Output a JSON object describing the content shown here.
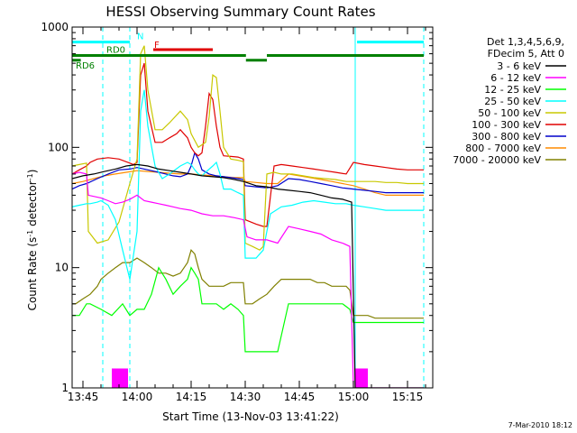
{
  "chart_data": {
    "type": "line",
    "title": "HESSI Observing Summary Count Rates",
    "xlabel": "Start Time (13-Nov-03 13:41:22)",
    "ylabel_pre": "Count Rate (s",
    "ylabel_sup1": "-1",
    "ylabel_mid": " detector",
    "ylabel_sup2": "-1",
    "ylabel_post": ")",
    "yscale": "log",
    "ylim": [
      1,
      1000
    ],
    "xlim_min": [
      822,
      922
    ],
    "xticks": [
      {
        "v": 825,
        "label": "13:45"
      },
      {
        "v": 840,
        "label": "14:00"
      },
      {
        "v": 855,
        "label": "14:15"
      },
      {
        "v": 870,
        "label": "14:30"
      },
      {
        "v": 885,
        "label": "14:45"
      },
      {
        "v": 900,
        "label": "15:00"
      },
      {
        "v": 915,
        "label": "15:15"
      }
    ],
    "yticks": [
      {
        "v": 1,
        "label": "1"
      },
      {
        "v": 10,
        "label": "10"
      },
      {
        "v": 100,
        "label": "100"
      },
      {
        "v": 1000,
        "label": "1000"
      }
    ],
    "legend_position": "right",
    "legend_header": [
      "Det 1,3,4,5,6,9,",
      "FDecim 5, Att 0"
    ],
    "series": [
      {
        "name": "3 - 6 keV",
        "color": "#000000",
        "x": [
          822,
          825,
          828,
          831,
          834,
          837,
          840,
          843,
          846,
          849,
          852,
          855,
          858,
          861,
          864,
          867,
          869.5,
          873,
          876,
          879,
          882,
          885,
          888,
          891,
          894,
          897,
          899.5,
          900.5,
          903,
          906,
          909,
          912,
          915,
          918,
          919.5
        ],
        "y": [
          55,
          58,
          60,
          63,
          66,
          70,
          72,
          70,
          66,
          64,
          62,
          60,
          58,
          57,
          56,
          54,
          52,
          48,
          47,
          45,
          44,
          43,
          42,
          40,
          38,
          37,
          35,
          1,
          1,
          1,
          1,
          1,
          1,
          1,
          1
        ]
      },
      {
        "name": "6 - 12 keV",
        "color": "#ff00ff",
        "x": [
          822,
          824,
          826,
          826.5,
          830,
          832,
          834,
          836,
          838,
          840,
          842,
          844,
          846,
          848,
          850,
          852,
          855,
          858,
          861,
          864,
          867,
          869.5,
          870.5,
          873,
          876,
          879,
          882,
          885,
          888,
          891,
          894,
          897,
          899,
          900,
          903,
          906,
          909,
          912,
          915,
          918,
          919.5
        ],
        "y": [
          60,
          62,
          60,
          40,
          38,
          36,
          34,
          35,
          37,
          40,
          36,
          35,
          34,
          33,
          32,
          31,
          30,
          28,
          27,
          27,
          26,
          25,
          18,
          17,
          17,
          16,
          22,
          21,
          20,
          19,
          17,
          16,
          15,
          1,
          1,
          1,
          1,
          1,
          1,
          1,
          1
        ]
      },
      {
        "name": "12 - 25 keV",
        "color": "#00ff00",
        "x": [
          822,
          824,
          826,
          827,
          830,
          833,
          836,
          838,
          840,
          842,
          844,
          846,
          848,
          850,
          852,
          854,
          855,
          856,
          857,
          858,
          860,
          862,
          864,
          866,
          868,
          869.5,
          870,
          873,
          876,
          879,
          882,
          885,
          888,
          891,
          894,
          897,
          899,
          900,
          903,
          906,
          909,
          912,
          915,
          918,
          919.5
        ],
        "y": [
          4,
          4,
          5,
          5,
          4.5,
          4,
          5,
          4,
          4.5,
          4.5,
          6,
          10,
          8,
          6,
          7,
          8,
          10,
          9,
          8,
          5,
          5,
          5,
          4.5,
          5,
          4.5,
          4,
          2,
          2,
          2,
          2,
          5,
          5,
          5,
          5,
          5,
          5,
          4.5,
          3.5,
          3.5,
          3.5,
          3.5,
          3.5,
          3.5,
          3.5,
          3.5
        ]
      },
      {
        "name": "25 - 50 keV",
        "color": "#00ffff",
        "x": [
          822,
          824,
          826,
          827,
          829,
          830,
          832,
          834,
          836,
          838,
          840,
          841,
          842,
          843,
          845,
          847,
          849,
          852,
          854,
          855,
          856,
          857,
          858,
          859,
          861,
          862,
          863,
          864,
          866,
          868,
          869.5,
          870,
          873,
          875,
          876,
          877,
          880,
          883,
          886,
          889,
          892,
          895,
          898,
          900,
          903,
          906,
          909,
          912,
          915,
          918,
          919.5
        ],
        "y": [
          32,
          33,
          34,
          34,
          35,
          36,
          33,
          25,
          14,
          8,
          20,
          200,
          300,
          150,
          70,
          55,
          60,
          70,
          75,
          72,
          65,
          60,
          58,
          62,
          70,
          75,
          60,
          45,
          45,
          42,
          40,
          12,
          12,
          14,
          20,
          28,
          32,
          33,
          35,
          36,
          35,
          34,
          34,
          33,
          32,
          31,
          30,
          30,
          30,
          30,
          30
        ]
      },
      {
        "name": "50 - 100 keV",
        "color": "#c8c800",
        "x": [
          822,
          824,
          826,
          826.5,
          829,
          832,
          835,
          838,
          840,
          841,
          842,
          843,
          845,
          847,
          849,
          852,
          854,
          855,
          857,
          859,
          860,
          861,
          862,
          863,
          864,
          866,
          868,
          869.5,
          870,
          872,
          874,
          875,
          876,
          878,
          880,
          883,
          886,
          889,
          892,
          895,
          898,
          900,
          903,
          906,
          909,
          912,
          915,
          918,
          919.5
        ],
        "y": [
          70,
          72,
          74,
          20,
          16,
          17,
          24,
          50,
          80,
          600,
          700,
          300,
          140,
          140,
          160,
          200,
          170,
          130,
          100,
          110,
          180,
          400,
          380,
          200,
          100,
          80,
          78,
          76,
          16,
          15,
          14,
          15,
          60,
          62,
          60,
          60,
          58,
          56,
          55,
          54,
          52,
          52,
          52,
          52,
          51,
          51,
          50,
          50,
          50
        ]
      },
      {
        "name": "100 - 300 keV",
        "color": "#e00000",
        "x": [
          822,
          824,
          826,
          827,
          829,
          832,
          835,
          838,
          839,
          840,
          841,
          842,
          843,
          845,
          847,
          849,
          851,
          852,
          854,
          855,
          856,
          857,
          858,
          859,
          860,
          861,
          862,
          863,
          864,
          866,
          868,
          869.5,
          870,
          873,
          875,
          876,
          878,
          880,
          883,
          886,
          889,
          892,
          895,
          898,
          900,
          903,
          906,
          909,
          912,
          915,
          918,
          919.5
        ],
        "y": [
          60,
          65,
          70,
          75,
          80,
          82,
          80,
          74,
          72,
          75,
          400,
          500,
          200,
          110,
          110,
          120,
          130,
          140,
          120,
          100,
          90,
          85,
          90,
          150,
          280,
          250,
          150,
          100,
          85,
          84,
          83,
          80,
          25,
          23,
          22,
          22,
          70,
          72,
          70,
          68,
          66,
          64,
          62,
          60,
          75,
          72,
          70,
          68,
          66,
          65,
          65,
          65
        ]
      },
      {
        "name": "300 - 800 keV",
        "color": "#0000cc",
        "x": [
          822,
          824,
          826,
          829,
          832,
          835,
          838,
          840,
          842,
          844,
          846,
          848,
          850,
          852,
          854,
          855,
          856,
          857,
          858,
          860,
          862,
          864,
          866,
          868,
          869.5,
          870,
          873,
          876,
          879,
          882,
          885,
          888,
          891,
          894,
          897,
          900,
          903,
          906,
          909,
          912,
          915,
          918,
          919.5
        ],
        "y": [
          45,
          48,
          50,
          55,
          60,
          65,
          66,
          68,
          66,
          64,
          62,
          60,
          58,
          57,
          60,
          70,
          90,
          80,
          65,
          60,
          58,
          57,
          56,
          55,
          54,
          48,
          47,
          46,
          48,
          55,
          54,
          52,
          50,
          48,
          46,
          45,
          44,
          43,
          42,
          42,
          42,
          42,
          42
        ]
      },
      {
        "name": "800 - 7000 keV",
        "color": "#ff8c00",
        "x": [
          822,
          825,
          828,
          831,
          834,
          837,
          840,
          843,
          846,
          849,
          852,
          855,
          858,
          861,
          864,
          867,
          869.5,
          870,
          873,
          876,
          879,
          882,
          885,
          888,
          891,
          894,
          897,
          900,
          903,
          906,
          909,
          912,
          915,
          918,
          919.5
        ],
        "y": [
          50,
          52,
          55,
          58,
          60,
          62,
          64,
          63,
          62,
          61,
          60,
          60,
          59,
          58,
          57,
          56,
          56,
          52,
          51,
          50,
          50,
          60,
          58,
          56,
          54,
          52,
          50,
          48,
          45,
          42,
          40,
          40,
          40,
          40,
          40
        ]
      },
      {
        "name": "7000 - 20000 keV",
        "color": "#808000",
        "x": [
          822,
          823,
          825,
          827,
          829,
          830,
          832,
          834,
          836,
          838,
          840,
          842,
          844,
          846,
          848,
          850,
          852,
          854,
          855,
          856,
          857,
          858,
          860,
          862,
          864,
          866,
          868,
          869.5,
          870,
          872,
          874,
          876,
          878,
          880,
          882,
          884,
          886,
          888,
          890,
          892,
          894,
          896,
          898,
          899,
          900,
          902,
          904,
          906,
          908,
          910,
          912,
          914,
          916,
          918,
          919.5
        ],
        "y": [
          5,
          5,
          5.5,
          6,
          7,
          8,
          9,
          10,
          11,
          11,
          12,
          11,
          10,
          9,
          9,
          8.5,
          9,
          11,
          14,
          13,
          10,
          8,
          7,
          7,
          7,
          7.5,
          7.5,
          7.5,
          5,
          5,
          5.5,
          6,
          7,
          8,
          8,
          8,
          8,
          8,
          7.5,
          7.5,
          7,
          7,
          7,
          6.5,
          4,
          4,
          4,
          3.8,
          3.8,
          3.8,
          3.8,
          3.8,
          3.8,
          3.8,
          3.8
        ]
      }
    ],
    "vlines": [
      {
        "x": 830.5,
        "style": "dashed"
      },
      {
        "x": 838,
        "style": "dashed"
      },
      {
        "x": 900.5,
        "style": "solid"
      },
      {
        "x": 919.5,
        "style": "dashed"
      }
    ],
    "bars": [
      {
        "label": "RD0",
        "color": "#008000",
        "y": 580,
        "segments": [
          [
            822,
            870.2
          ],
          [
            876,
            919.5
          ]
        ]
      },
      {
        "label": "RD6",
        "color": "#008000",
        "y": 530,
        "segments": [
          [
            822,
            824.4
          ],
          [
            870.2,
            876
          ]
        ]
      },
      {
        "label": "N",
        "color": "#00ffff",
        "y": 750,
        "segments": [
          [
            822,
            838
          ],
          [
            901,
            919.5
          ]
        ]
      },
      {
        "label": "F",
        "color": "#e00000",
        "y": 650,
        "segments": [
          [
            844.5,
            861
          ]
        ]
      }
    ],
    "bottom_markers": [
      {
        "color": "#ff00ff",
        "segments": [
          [
            833,
            837.5
          ],
          [
            900.5,
            904
          ]
        ],
        "top": 1.45
      }
    ],
    "date_stamp": "7-Mar-2010 18:12"
  }
}
